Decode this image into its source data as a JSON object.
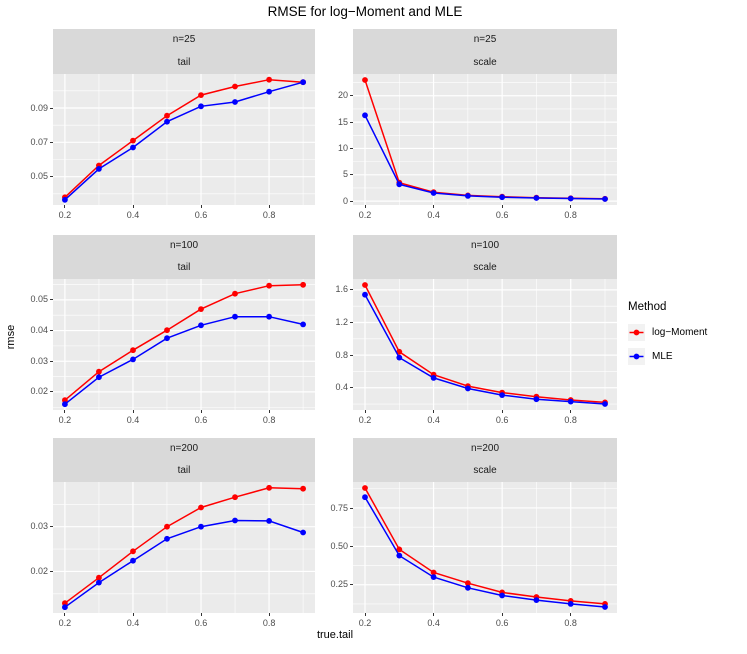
{
  "title": "RMSE for log−Moment and MLE",
  "x_axis_label": "true.tail",
  "y_axis_label": "rmse",
  "legend": {
    "title": "Method",
    "items": [
      {
        "label": "log−Moment",
        "color": "#FF0000"
      },
      {
        "label": "MLE",
        "color": "#0000FF"
      }
    ]
  },
  "style": {
    "panel_bg": "#EBEBEB",
    "strip_bg": "#D9D9D9",
    "grid_color": "#FFFFFF",
    "axis_text_color": "#4D4D4D",
    "tick_mark_color": "#333333",
    "legend_key_bg": "#F2F2F2"
  },
  "chart_data": [
    {
      "type": "line",
      "facet": {
        "group": "n=25",
        "variable": "tail"
      },
      "x": [
        0.2,
        0.3,
        0.4,
        0.5,
        0.6,
        0.7,
        0.8,
        0.9
      ],
      "xlim": [
        0.165,
        0.935
      ],
      "xticks": {
        "values": [
          0.2,
          0.4,
          0.6,
          0.8
        ],
        "labels": [
          "0.2",
          "0.4",
          "0.6",
          "0.8"
        ]
      },
      "xminor": [
        0.3,
        0.5,
        0.7,
        0.9
      ],
      "ylim": [
        0.0335,
        0.1098
      ],
      "yticks": {
        "values": [
          0.05,
          0.07,
          0.09
        ],
        "labels": [
          "0.05",
          "0.07",
          "0.09"
        ]
      },
      "yminor": [
        0.04,
        0.06,
        0.08,
        0.1
      ],
      "series": [
        {
          "name": "log−Moment",
          "color": "#FF0000",
          "values": [
            0.038,
            0.0565,
            0.071,
            0.0855,
            0.0975,
            0.1025,
            0.1065,
            0.105
          ]
        },
        {
          "name": "MLE",
          "color": "#0000FF",
          "values": [
            0.0365,
            0.0545,
            0.067,
            0.082,
            0.091,
            0.0935,
            0.0995,
            0.105
          ]
        }
      ]
    },
    {
      "type": "line",
      "facet": {
        "group": "n=25",
        "variable": "scale"
      },
      "x": [
        0.2,
        0.3,
        0.4,
        0.5,
        0.6,
        0.7,
        0.8,
        0.9
      ],
      "xlim": [
        0.165,
        0.935
      ],
      "xticks": {
        "values": [
          0.2,
          0.4,
          0.6,
          0.8
        ],
        "labels": [
          "0.2",
          "0.4",
          "0.6",
          "0.8"
        ]
      },
      "xminor": [
        0.3,
        0.5,
        0.7,
        0.9
      ],
      "ylim": [
        -0.73,
        24.13
      ],
      "yticks": {
        "values": [
          0,
          5,
          10,
          15,
          20
        ],
        "labels": [
          "0",
          "5",
          "10",
          "15",
          "20"
        ]
      },
      "yminor": [
        2.5,
        7.5,
        12.5,
        17.5,
        22.5
      ],
      "series": [
        {
          "name": "log−Moment",
          "color": "#FF0000",
          "values": [
            23.0,
            3.5,
            1.7,
            1.1,
            0.85,
            0.65,
            0.55,
            0.45
          ]
        },
        {
          "name": "MLE",
          "color": "#0000FF",
          "values": [
            16.3,
            3.2,
            1.55,
            1.0,
            0.75,
            0.6,
            0.5,
            0.4
          ]
        }
      ]
    },
    {
      "type": "line",
      "facet": {
        "group": "n=100",
        "variable": "tail"
      },
      "x": [
        0.2,
        0.3,
        0.4,
        0.5,
        0.6,
        0.7,
        0.8,
        0.9
      ],
      "xlim": [
        0.165,
        0.935
      ],
      "xticks": {
        "values": [
          0.2,
          0.4,
          0.6,
          0.8
        ],
        "labels": [
          "0.2",
          "0.4",
          "0.6",
          "0.8"
        ]
      },
      "xminor": [
        0.3,
        0.5,
        0.7,
        0.9
      ],
      "ylim": [
        0.0141,
        0.0568
      ],
      "yticks": {
        "values": [
          0.02,
          0.03,
          0.04,
          0.05
        ],
        "labels": [
          "0.02",
          "0.03",
          "0.04",
          "0.05"
        ]
      },
      "yminor": [
        0.015,
        0.025,
        0.035,
        0.045,
        0.055
      ],
      "series": [
        {
          "name": "log−Moment",
          "color": "#FF0000",
          "values": [
            0.0173,
            0.0266,
            0.0336,
            0.0401,
            0.047,
            0.052,
            0.0546,
            0.0549
          ]
        },
        {
          "name": "MLE",
          "color": "#0000FF",
          "values": [
            0.016,
            0.0248,
            0.0306,
            0.0375,
            0.0417,
            0.0445,
            0.0445,
            0.042
          ]
        }
      ]
    },
    {
      "type": "line",
      "facet": {
        "group": "n=100",
        "variable": "scale"
      },
      "x": [
        0.2,
        0.3,
        0.4,
        0.5,
        0.6,
        0.7,
        0.8,
        0.9
      ],
      "xlim": [
        0.165,
        0.935
      ],
      "xticks": {
        "values": [
          0.2,
          0.4,
          0.6,
          0.8
        ],
        "labels": [
          "0.2",
          "0.4",
          "0.6",
          "0.8"
        ]
      },
      "xminor": [
        0.3,
        0.5,
        0.7,
        0.9
      ],
      "ylim": [
        0.127,
        1.733
      ],
      "yticks": {
        "values": [
          0.4,
          0.8,
          1.2,
          1.6
        ],
        "labels": [
          "0.4",
          "0.8",
          "1.2",
          "1.6"
        ]
      },
      "yminor": [
        0.2,
        0.6,
        1.0,
        1.4
      ],
      "series": [
        {
          "name": "log−Moment",
          "color": "#FF0000",
          "values": [
            1.66,
            0.84,
            0.56,
            0.42,
            0.34,
            0.29,
            0.25,
            0.22
          ]
        },
        {
          "name": "MLE",
          "color": "#0000FF",
          "values": [
            1.54,
            0.77,
            0.52,
            0.39,
            0.31,
            0.26,
            0.23,
            0.2
          ]
        }
      ]
    },
    {
      "type": "line",
      "facet": {
        "group": "n=200",
        "variable": "tail"
      },
      "x": [
        0.2,
        0.3,
        0.4,
        0.5,
        0.6,
        0.7,
        0.8,
        0.9
      ],
      "xlim": [
        0.165,
        0.935
      ],
      "xticks": {
        "values": [
          0.2,
          0.4,
          0.6,
          0.8
        ],
        "labels": [
          "0.2",
          "0.4",
          "0.6",
          "0.8"
        ]
      },
      "xminor": [
        0.3,
        0.5,
        0.7,
        0.9
      ],
      "ylim": [
        0.0107,
        0.04
      ],
      "yticks": {
        "values": [
          0.02,
          0.03
        ],
        "labels": [
          "0.02",
          "0.03"
        ]
      },
      "yminor": [
        0.015,
        0.025,
        0.035
      ],
      "series": [
        {
          "name": "log−Moment",
          "color": "#FF0000",
          "values": [
            0.0129,
            0.0186,
            0.0245,
            0.03,
            0.0343,
            0.0366,
            0.0387,
            0.0385
          ]
        },
        {
          "name": "MLE",
          "color": "#0000FF",
          "values": [
            0.012,
            0.0175,
            0.0224,
            0.0273,
            0.03,
            0.0314,
            0.0313,
            0.0287
          ]
        }
      ]
    },
    {
      "type": "line",
      "facet": {
        "group": "n=200",
        "variable": "scale"
      },
      "x": [
        0.2,
        0.3,
        0.4,
        0.5,
        0.6,
        0.7,
        0.8,
        0.9
      ],
      "xlim": [
        0.165,
        0.935
      ],
      "xticks": {
        "values": [
          0.2,
          0.4,
          0.6,
          0.8
        ],
        "labels": [
          "0.2",
          "0.4",
          "0.6",
          "0.8"
        ]
      },
      "xminor": [
        0.3,
        0.5,
        0.7,
        0.9
      ],
      "ylim": [
        0.066,
        0.919
      ],
      "yticks": {
        "values": [
          0.25,
          0.5,
          0.75
        ],
        "labels": [
          "0.25",
          "0.50",
          "0.75"
        ]
      },
      "yminor": [
        0.125,
        0.375,
        0.625,
        0.875
      ],
      "series": [
        {
          "name": "log−Moment",
          "color": "#FF0000",
          "values": [
            0.88,
            0.48,
            0.33,
            0.26,
            0.2,
            0.17,
            0.145,
            0.125
          ]
        },
        {
          "name": "MLE",
          "color": "#0000FF",
          "values": [
            0.82,
            0.44,
            0.3,
            0.23,
            0.18,
            0.15,
            0.125,
            0.105
          ]
        }
      ]
    }
  ]
}
